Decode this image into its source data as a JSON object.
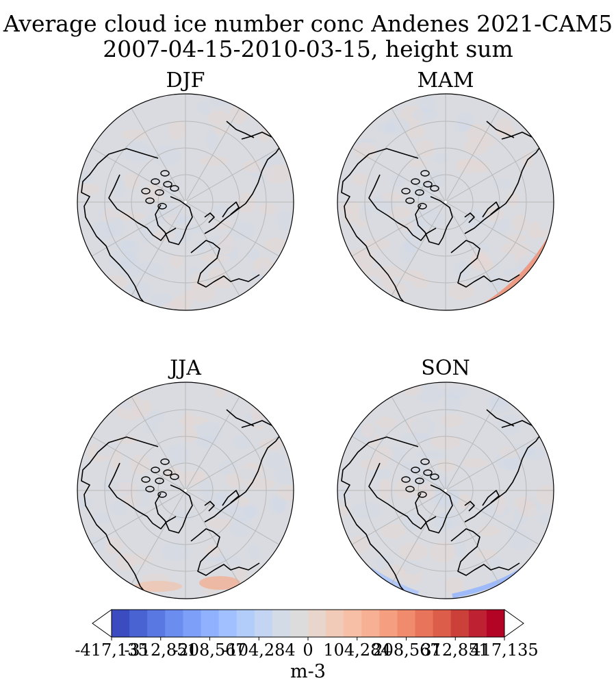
{
  "title_line1": "Average cloud ice number conc Andenes 2021-CAM5",
  "title_line2": "2007-04-15-2010-03-15, height sum",
  "panels": [
    {
      "label": "DJF"
    },
    {
      "label": "MAM"
    },
    {
      "label": "JJA"
    },
    {
      "label": "SON"
    }
  ],
  "colorbar": {
    "unit": "m-3",
    "ticks": [
      "-417,135",
      "-312,851",
      "-208,567",
      "-104,284",
      "0",
      "104,284",
      "208,567",
      "312,851",
      "417,135"
    ],
    "colors": [
      "#3b4cc0",
      "#4a63d3",
      "#5a78e2",
      "#6b8df0",
      "#7d9ff8",
      "#8fb1fe",
      "#a1c0ff",
      "#b3cdfa",
      "#c4d5f3",
      "#d3dbe7",
      "#dddcdc",
      "#e8d5cb",
      "#f1cbb7",
      "#f6bfa6",
      "#f7b093",
      "#f59f80",
      "#f08b6e",
      "#e7745b",
      "#dc5d4a",
      "#cc403a",
      "#be2131",
      "#b40426"
    ],
    "extend": "both"
  },
  "map_style": {
    "ocean_fill": "#d9dbe0",
    "gridline_color": "#b8b8b8",
    "coastline_color": "#000000"
  }
}
